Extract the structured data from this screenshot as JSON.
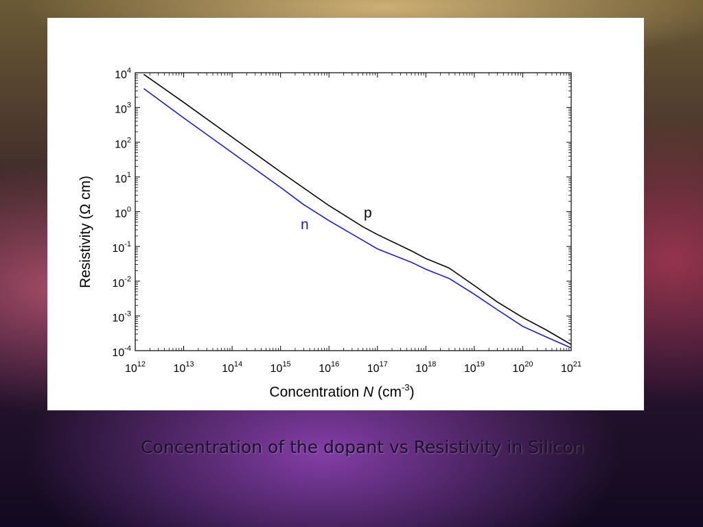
{
  "caption": "Concentration of the dopant vs Resistivity in Silicon",
  "chart_data": {
    "type": "line",
    "xscale": "log",
    "yscale": "log",
    "xlim": [
      1000000000000.0,
      1e+21
    ],
    "ylim": [
      0.0001,
      10000.0
    ],
    "xticks": [
      {
        "base": "10",
        "exp": "12"
      },
      {
        "base": "10",
        "exp": "13"
      },
      {
        "base": "10",
        "exp": "14"
      },
      {
        "base": "10",
        "exp": "15"
      },
      {
        "base": "10",
        "exp": "16"
      },
      {
        "base": "10",
        "exp": "17"
      },
      {
        "base": "10",
        "exp": "18"
      },
      {
        "base": "10",
        "exp": "19"
      },
      {
        "base": "10",
        "exp": "20"
      },
      {
        "base": "10",
        "exp": "21"
      }
    ],
    "yticks": [
      {
        "base": "10",
        "exp": "4"
      },
      {
        "base": "10",
        "exp": "3"
      },
      {
        "base": "10",
        "exp": "2"
      },
      {
        "base": "10",
        "exp": "1"
      },
      {
        "base": "10",
        "exp": "0"
      },
      {
        "base": "10",
        "exp": "-1"
      },
      {
        "base": "10",
        "exp": "-2"
      },
      {
        "base": "10",
        "exp": "-3"
      },
      {
        "base": "10",
        "exp": "-4"
      }
    ],
    "xlabel": {
      "pre": "Concentration ",
      "var": "N",
      "mid": " (cm",
      "exp": "-3",
      "post": ")"
    },
    "ylabel": "Resistivity (Ω cm)",
    "grid": false,
    "series": [
      {
        "name": "p",
        "color": "#000000",
        "x": [
          1500000000000.0,
          10000000000000.0,
          100000000000000.0,
          1000000000000000.0,
          1e+16,
          5e+16,
          1e+17,
          5e+17,
          1e+18,
          3e+18,
          1e+19,
          3e+19,
          1e+20,
          3e+20,
          1e+21
        ],
        "y": [
          9000,
          1400,
          140,
          14,
          1.5,
          0.37,
          0.22,
          0.075,
          0.045,
          0.024,
          0.0075,
          0.0025,
          0.0009,
          0.0004,
          0.00015
        ]
      },
      {
        "name": "n",
        "color": "#1a1ad0",
        "x": [
          1500000000000.0,
          10000000000000.0,
          100000000000000.0,
          1000000000000000.0,
          3000000000000000.0,
          1e+16,
          1e+17,
          5e+17,
          1e+18,
          3e+18,
          1e+19,
          3e+19,
          1e+20,
          3e+20,
          1e+21
        ],
        "y": [
          3500,
          500,
          50,
          5,
          1.6,
          0.55,
          0.085,
          0.035,
          0.022,
          0.012,
          0.0042,
          0.0015,
          0.0005,
          0.00025,
          0.00012
        ]
      }
    ]
  }
}
